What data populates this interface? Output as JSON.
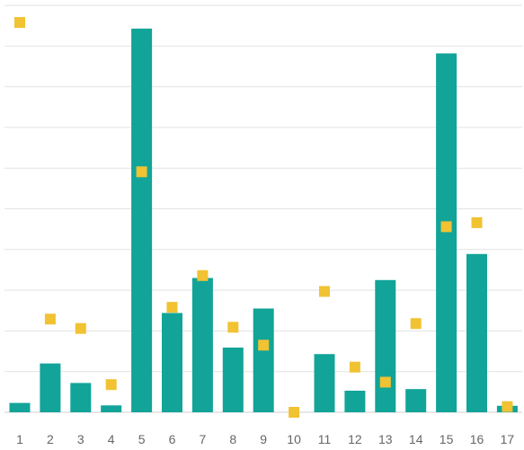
{
  "chart_data": {
    "type": "bar",
    "categories": [
      "1",
      "2",
      "3",
      "4",
      "5",
      "6",
      "7",
      "8",
      "9",
      "10",
      "11",
      "12",
      "13",
      "14",
      "15",
      "16",
      "17"
    ],
    "series": [
      {
        "type": "bar",
        "values": [
          2.3,
          12.0,
          7.2,
          1.7,
          94.3,
          24.4,
          33.0,
          15.9,
          25.5,
          0,
          14.3,
          5.3,
          32.5,
          5.7,
          88.2,
          38.9,
          1.6
        ],
        "color": "#12a499"
      },
      {
        "type": "scatter",
        "values": [
          95.8,
          22.9,
          20.6,
          6.8,
          59.1,
          25.8,
          33.6,
          20.9,
          16.5,
          0,
          29.7,
          11.1,
          7.4,
          21.8,
          45.6,
          46.6,
          1.4
        ],
        "color": "#f1c232"
      }
    ],
    "ylim": [
      0,
      100
    ],
    "grid": true,
    "xlabel": "",
    "ylabel": ""
  }
}
